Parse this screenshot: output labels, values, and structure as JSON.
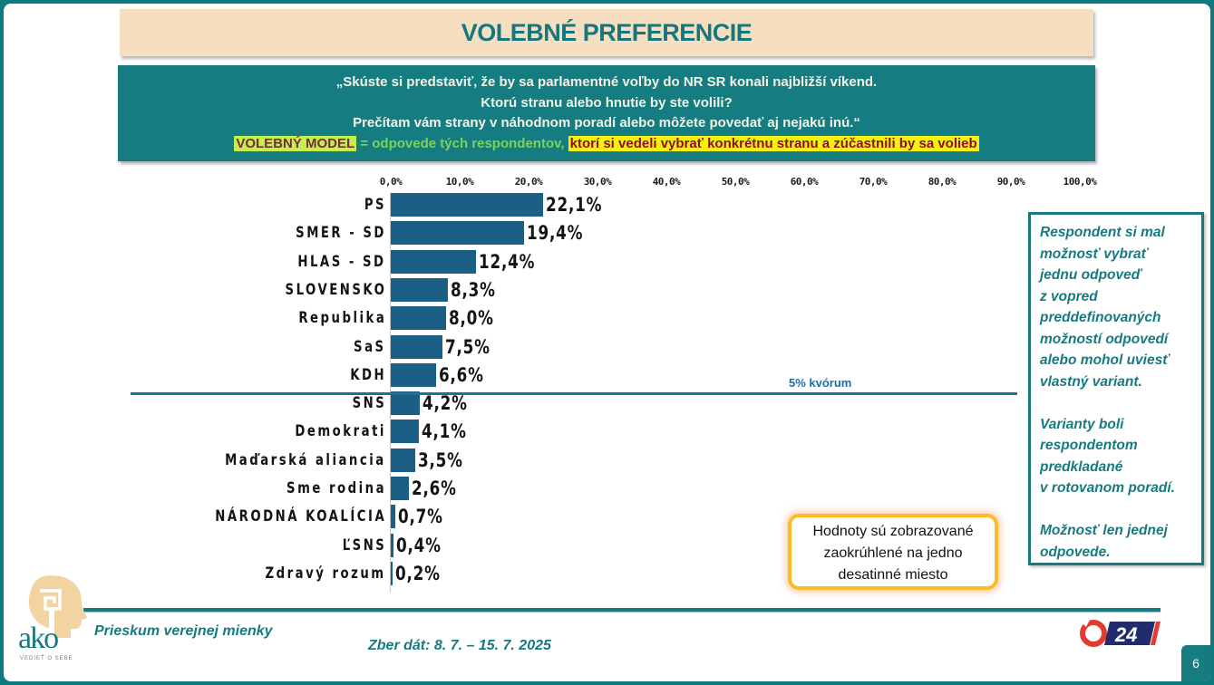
{
  "header": {
    "title": "VOLEBNÉ PREFERENCIE"
  },
  "question": {
    "lines": [
      "„Skúste si predstaviť, že by sa parlamentné voľby do NR SR konali najbližší víkend.",
      "Ktorú stranu alebo hnutie by ste volili?",
      "Prečítam vám strany v náhodnom poradí alebo môžete povedať aj nejakú inú.“"
    ],
    "model_label": "VOLEBNÝ MODEL",
    "model_mid": " = odpovede tých respondentov, ",
    "model_tail": "ktorí si vedeli vybrať konkrétnu stranu a zúčastnili by sa volieb"
  },
  "chart_data": {
    "type": "bar",
    "orientation": "horizontal",
    "title": "VOLEBNÉ PREFERENCIE",
    "xlabel": "",
    "ylabel": "",
    "xlim": [
      0,
      100
    ],
    "x_ticks": [
      "0,0%",
      "10,0%",
      "20,0%",
      "30,0%",
      "40,0%",
      "50,0%",
      "60,0%",
      "70,0%",
      "80,0%",
      "90,0%",
      "100,0%"
    ],
    "categories": [
      "PS",
      "SMER - SD",
      "HLAS - SD",
      "SLOVENSKO",
      "Republika",
      "SaS",
      "KDH",
      "SNS",
      "Demokrati",
      "Maďarská aliancia",
      "Sme rodina",
      "NÁRODNÁ KOALÍCIA",
      "ĽSNS",
      "Zdravý rozum"
    ],
    "values": [
      22.1,
      19.4,
      12.4,
      8.3,
      8.0,
      7.5,
      6.6,
      4.2,
      4.1,
      3.5,
      2.6,
      0.7,
      0.4,
      0.2
    ],
    "value_labels": [
      "22,1%",
      "19,4%",
      "12,4%",
      "8,3%",
      "8,0%",
      "7,5%",
      "6,6%",
      "4,2%",
      "4,1%",
      "3,5%",
      "2,6%",
      "0,7%",
      "0,4%",
      "0,2%"
    ],
    "bar_color": "#1b5f84",
    "grid": false,
    "annotations": [
      {
        "text": "5% kvórum",
        "type": "threshold-line",
        "between": [
          "KDH",
          "SNS"
        ]
      }
    ]
  },
  "quorum": {
    "label": "5% kvórum"
  },
  "info_box": {
    "paragraphs": [
      [
        "Respondent si mal",
        "možnosť vybrať",
        "jednu odpoveď",
        "z vopred",
        "preddefinovaných",
        "možností odpovedí",
        "alebo mohol uviesť",
        "vlastný variant."
      ],
      [
        "Varianty boli",
        "respondentom",
        "predkladané",
        "v rotovanom poradí."
      ],
      [
        "Možnosť len jednej",
        "odpovede."
      ]
    ]
  },
  "note": {
    "lines": [
      "Hodnoty sú zobrazované",
      "zaokrúhlené na jedno",
      "desatinné miesto"
    ]
  },
  "footer": {
    "survey_label": "Prieskum verejnej mienky",
    "date_label": "Zber dát: 8. 7. – 15. 7. 2025",
    "logo_text": "ako",
    "logo_tagline": "VEDIEŤ O SEBE",
    "broadcaster": "24",
    "page_number": "6"
  },
  "colors": {
    "teal": "#167c80",
    "title_bg": "#f6dfc0",
    "bar": "#1b5f84",
    "quorum_line": "#1d6fa0",
    "note_border": "#fbbd23"
  }
}
